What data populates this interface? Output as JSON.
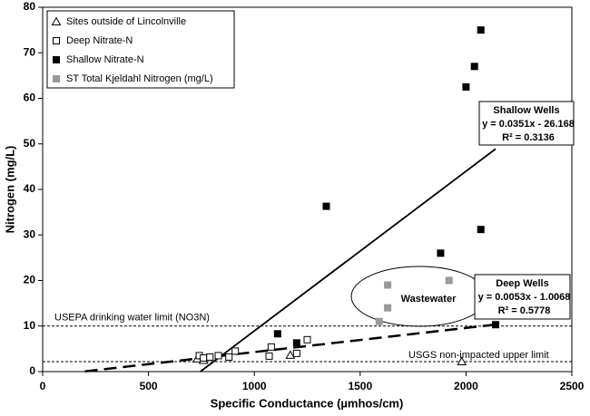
{
  "chart_data": {
    "type": "scatter",
    "x_label": "Specific Conductance (µmhos/cm)",
    "y_label": "Nitrogen (mg/L)",
    "xlim": [
      0,
      2500
    ],
    "ylim": [
      0,
      80
    ],
    "xticks": [
      0,
      500,
      1000,
      1500,
      2000,
      2500
    ],
    "yticks": [
      0,
      10,
      20,
      30,
      40,
      50,
      60,
      70,
      80
    ],
    "legend": "top-left",
    "series": [
      {
        "name": "Sites outside of Lincolnville",
        "marker": "triangle-open",
        "color": "#000000",
        "x": [
          730,
          760,
          1170,
          1980
        ],
        "values": [
          2.8,
          2.5,
          3.6,
          2.2
        ]
      },
      {
        "name": "Deep Nitrate-N",
        "marker": "square-open",
        "color": "#000000",
        "x": [
          740,
          760,
          790,
          830,
          880,
          910,
          1070,
          1080,
          1200,
          1250
        ],
        "values": [
          3.5,
          3,
          3.2,
          3.5,
          3.2,
          4.5,
          3.4,
          5.4,
          4,
          7
        ]
      },
      {
        "name": "Shallow Nitrate-N",
        "marker": "square-filled",
        "color": "#000000",
        "x": [
          1110,
          1200,
          1340,
          1880,
          2000,
          2040,
          2070,
          2070,
          2140
        ],
        "values": [
          8.3,
          6.3,
          36.3,
          26,
          62.5,
          67,
          75,
          31.2,
          10.3
        ]
      },
      {
        "name": "ST Total Kjeldahl Nitrogen (mg/L)",
        "marker": "square-filled",
        "color": "#999999",
        "x": [
          1590,
          1630,
          1630,
          1920
        ],
        "values": [
          11,
          19,
          14,
          20
        ]
      }
    ],
    "trendlines": [
      {
        "style": "solid",
        "x": [
          745,
          2140
        ],
        "values": [
          0,
          48.9
        ],
        "label": [
          "Shallow Wells",
          "y = 0.0351x - 26.168",
          "R² = 0.3136"
        ]
      },
      {
        "style": "dashed",
        "x": [
          200,
          2140
        ],
        "values": [
          0.05,
          10.33
        ],
        "label": [
          "Deep Wells",
          "y = 0.0053x - 1.0068",
          "R² = 0.5778"
        ]
      }
    ],
    "reference_lines": [
      {
        "value": 10,
        "label": "USEPA drinking water limit (NO3N)"
      },
      {
        "value": 2.2,
        "label": "USGS non-impacted upper limit"
      }
    ],
    "annotation": "Wastewater"
  }
}
